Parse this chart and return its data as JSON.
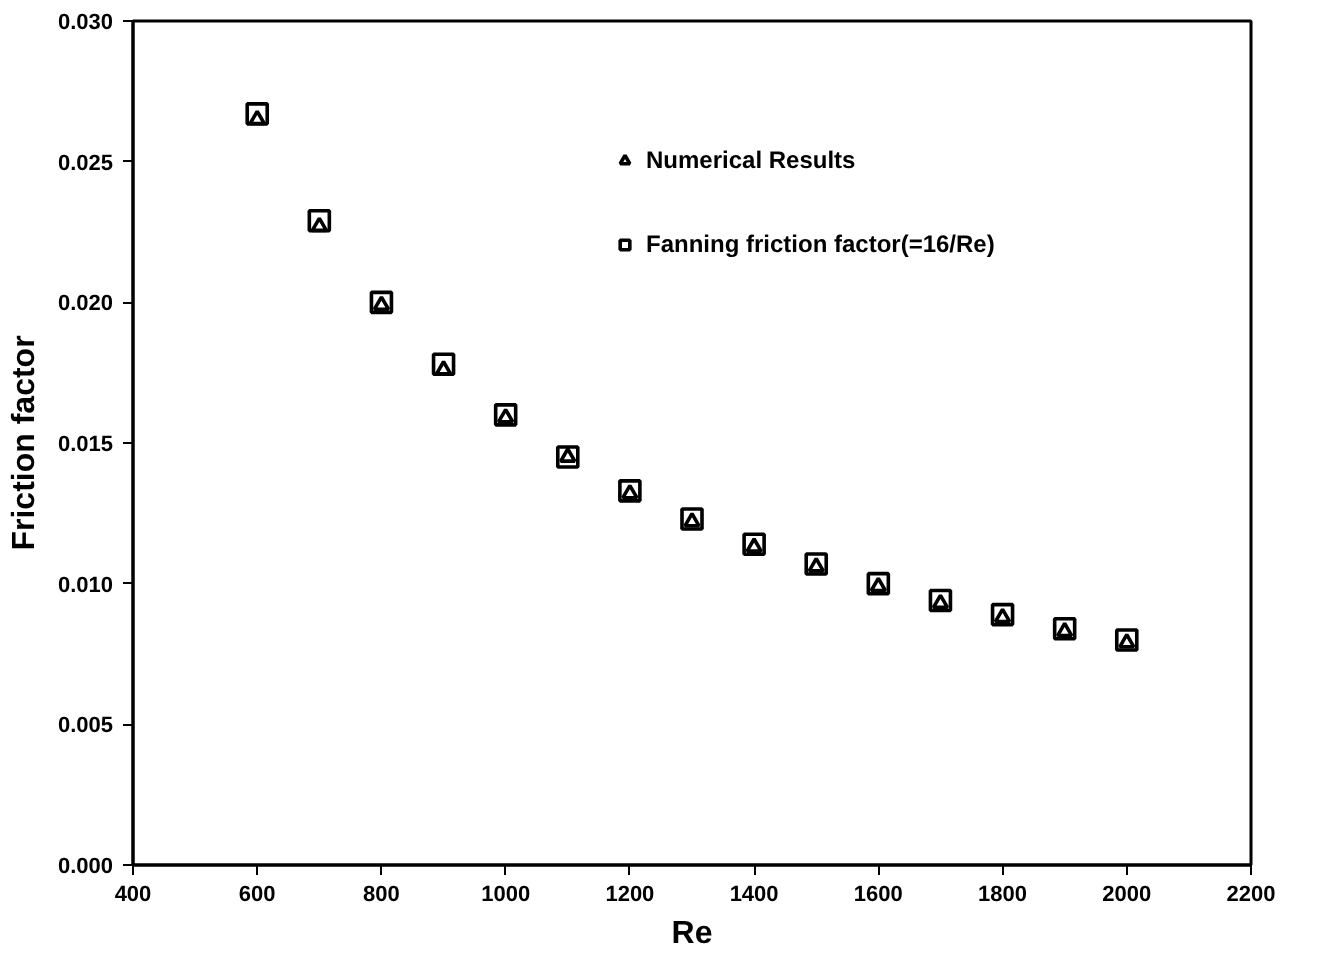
{
  "chart_data": {
    "type": "scatter",
    "xlabel": "Re",
    "ylabel": "Friction factor",
    "x": [
      600,
      700,
      800,
      900,
      1000,
      1100,
      1200,
      1300,
      1400,
      1500,
      1600,
      1700,
      1800,
      1900,
      2000
    ],
    "series": [
      {
        "name": "Numerical Results",
        "color": "#000000",
        "marker": "triangle",
        "values": [
          0.0265,
          0.0227,
          0.0199,
          0.0176,
          0.0159,
          0.0145,
          0.0132,
          0.0122,
          0.0113,
          0.0106,
          0.0099,
          0.0093,
          0.0088,
          0.0083,
          0.0079
        ]
      },
      {
        "name": "Fanning friction factor(=16/Re)",
        "color": "#000000",
        "marker": "square",
        "values": [
          0.0267,
          0.0229,
          0.02,
          0.0178,
          0.016,
          0.0145,
          0.0133,
          0.0123,
          0.0114,
          0.0107,
          0.01,
          0.0094,
          0.0089,
          0.0084,
          0.008
        ]
      }
    ],
    "xlim": [
      400,
      2200
    ],
    "xticks": [
      400,
      600,
      800,
      1000,
      1200,
      1400,
      1600,
      1800,
      2000,
      2200
    ],
    "ylim": [
      0,
      0.03
    ],
    "yticks": [
      {
        "value": 0,
        "label": "0.000"
      },
      {
        "value": 0.005,
        "label": "0.005"
      },
      {
        "value": 0.01,
        "label": "0.010"
      },
      {
        "value": 0.015,
        "label": "0.015"
      },
      {
        "value": 0.02,
        "label": "0.020"
      },
      {
        "value": 0.025,
        "label": "0.025"
      },
      {
        "value": 0.03,
        "label": "0.030"
      }
    ],
    "grid": false,
    "legend": "top right"
  }
}
